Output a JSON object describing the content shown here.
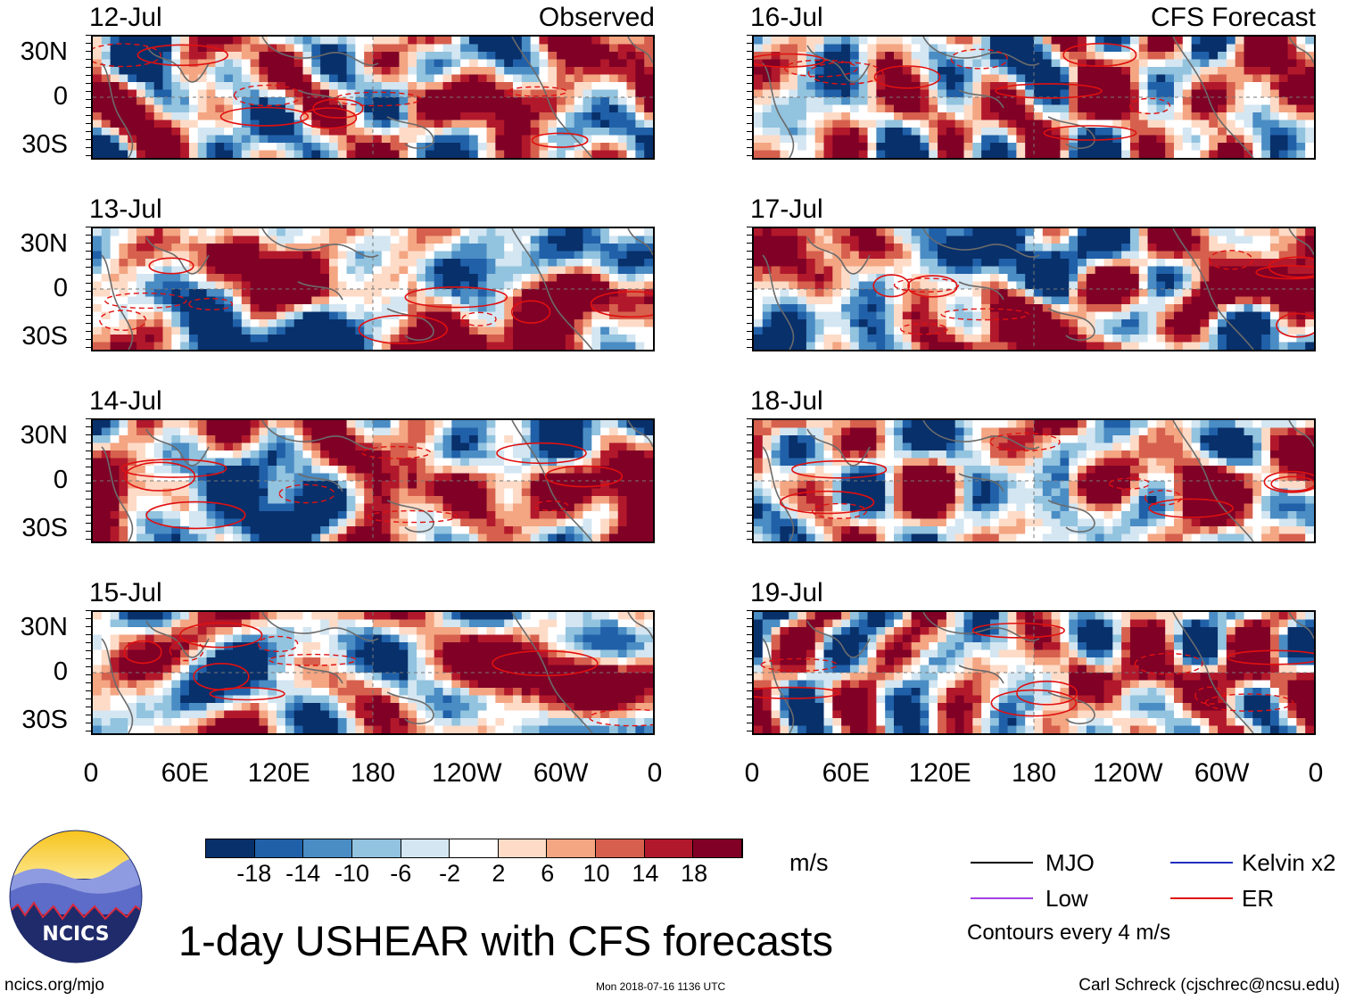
{
  "chart_data": {
    "type": "heatmap",
    "title": "1-day USHEAR with CFS forecasts",
    "units": "m/s",
    "x_ticks": [
      "0",
      "60E",
      "120E",
      "180",
      "120W",
      "60W",
      "0"
    ],
    "y_ticks": [
      "30N",
      "0",
      "30S"
    ],
    "colorbar": {
      "tick_labels": [
        "-18",
        "-14",
        "-10",
        "-6",
        "-2",
        "2",
        "6",
        "10",
        "14",
        "18"
      ],
      "colors": [
        "#08306b",
        "#2060a8",
        "#4a8cc4",
        "#92c3df",
        "#d3e6f2",
        "#ffffff",
        "#fddbc7",
        "#f4a582",
        "#d6604d",
        "#b2182b",
        "#800026"
      ]
    },
    "columns": [
      {
        "tag": "Observed",
        "panels": [
          {
            "date": "12-Jul",
            "seed": 3
          },
          {
            "date": "13-Jul",
            "seed": 7
          },
          {
            "date": "14-Jul",
            "seed": 11
          },
          {
            "date": "15-Jul",
            "seed": 17
          }
        ]
      },
      {
        "tag": "CFS Forecast",
        "panels": [
          {
            "date": "16-Jul",
            "seed": 23
          },
          {
            "date": "17-Jul",
            "seed": 29
          },
          {
            "date": "18-Jul",
            "seed": 31
          },
          {
            "date": "19-Jul",
            "seed": 37
          }
        ]
      }
    ],
    "legend": [
      {
        "label": "MJO",
        "color": "#000000"
      },
      {
        "label": "Kelvin x2",
        "color": "#2030c0"
      },
      {
        "label": "Low",
        "color": "#a040e0"
      },
      {
        "label": "ER",
        "color": "#e01010"
      }
    ],
    "contour_note": "Contours every 4 m/s"
  },
  "footer": {
    "logo_text": "NCICS",
    "site": "ncics.org/mjo",
    "timestamp": "Mon 2018-07-16 1136 UTC",
    "author": "Carl Schreck (cjschrec@ncsu.edu)"
  }
}
